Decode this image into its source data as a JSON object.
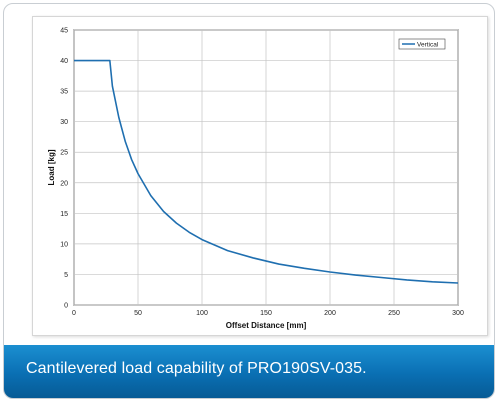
{
  "caption": "Cantilevered load capability of PRO190SV-035.",
  "colors": {
    "series": "#1f6fb0",
    "caption_bar": "#0a6fb3",
    "grid": "#c4c4c4"
  },
  "chart_data": {
    "type": "line",
    "xlabel": "Offset Distance [mm]",
    "ylabel": "Load [kg]",
    "xlim": [
      0,
      300
    ],
    "ylim": [
      0,
      45
    ],
    "xticks": [
      0,
      50,
      100,
      150,
      200,
      250,
      300
    ],
    "yticks": [
      0,
      5,
      10,
      15,
      20,
      25,
      30,
      35,
      40,
      45
    ],
    "grid": true,
    "legend_position": "top-right",
    "series": [
      {
        "name": "Vertical",
        "x": [
          0,
          28,
          30,
          35,
          40,
          45,
          50,
          60,
          70,
          80,
          90,
          100,
          120,
          140,
          160,
          180,
          200,
          220,
          240,
          260,
          280,
          300
        ],
        "y": [
          40,
          40,
          35.8,
          30.7,
          26.8,
          23.8,
          21.5,
          17.9,
          15.3,
          13.4,
          11.9,
          10.7,
          8.9,
          7.7,
          6.7,
          6.0,
          5.4,
          4.9,
          4.5,
          4.1,
          3.8,
          3.6
        ]
      }
    ]
  }
}
